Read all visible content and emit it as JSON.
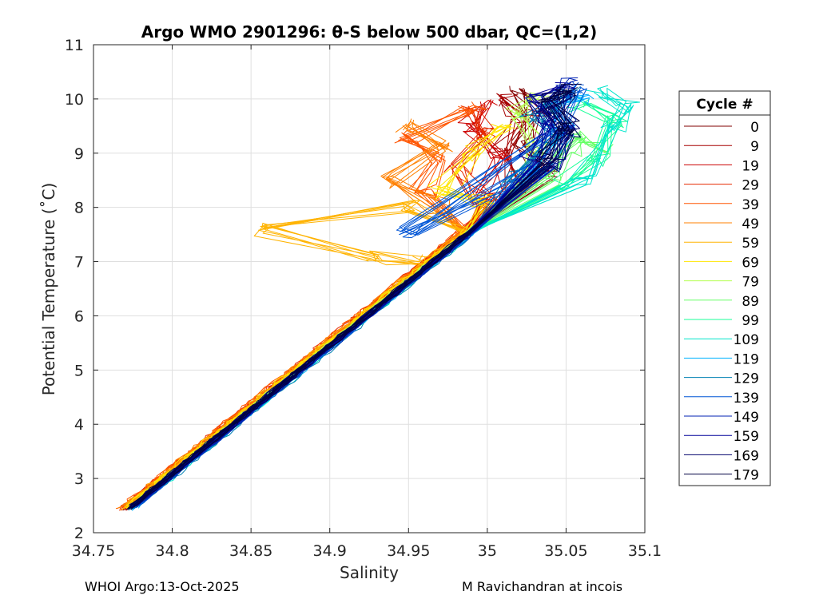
{
  "chart_data": {
    "type": "line",
    "title": "Argo WMO 2901296: θ-S below 500 dbar,  QC=(1,2)",
    "xlabel": "Salinity",
    "ylabel": "Potential Temperature (˚C)",
    "xlim": [
      34.75,
      35.1
    ],
    "ylim": [
      2,
      11
    ],
    "xticks": [
      34.75,
      34.8,
      34.85,
      34.9,
      34.95,
      35,
      35.05,
      35.1
    ],
    "xtick_labels": [
      "34.75",
      "34.8",
      "34.85",
      "34.9",
      "34.95",
      "35",
      "35.05",
      "35.1"
    ],
    "yticks": [
      2,
      3,
      4,
      5,
      6,
      7,
      8,
      9,
      10,
      11
    ],
    "ytick_labels": [
      "2",
      "3",
      "4",
      "5",
      "6",
      "7",
      "8",
      "9",
      "10",
      "11"
    ],
    "grid": true,
    "legend_title": "Cycle #",
    "legend_position": "right-outside",
    "series": [
      {
        "name": "0",
        "color": "#800000",
        "offset": 0.0,
        "upper": [
          [
            35.04,
            8.6
          ],
          [
            35.02,
            9.2
          ],
          [
            35.03,
            9.8
          ],
          [
            35.02,
            10.1
          ]
        ]
      },
      {
        "name": "9",
        "color": "#a50000",
        "offset": -0.001,
        "upper": [
          [
            35.02,
            8.4
          ],
          [
            35.01,
            9.0
          ],
          [
            35.02,
            9.6
          ],
          [
            35.01,
            10.0
          ]
        ]
      },
      {
        "name": "19",
        "color": "#cc0000",
        "offset": -0.003,
        "upper": [
          [
            35.0,
            8.2
          ],
          [
            35.01,
            8.9
          ],
          [
            34.99,
            9.5
          ],
          [
            35.0,
            9.9
          ]
        ]
      },
      {
        "name": "29",
        "color": "#e62a00",
        "offset": -0.004,
        "upper": [
          [
            35.0,
            8.1
          ],
          [
            34.98,
            8.7
          ],
          [
            35.0,
            9.4
          ],
          [
            34.99,
            9.8
          ]
        ]
      },
      {
        "name": "39",
        "color": "#ff5500",
        "offset": -0.005,
        "upper": [
          [
            34.96,
            8.3
          ],
          [
            34.97,
            8.9
          ],
          [
            34.95,
            9.3
          ],
          [
            34.99,
            9.8
          ]
        ]
      },
      {
        "name": "49",
        "color": "#ff8000",
        "offset": -0.004,
        "upper": [
          [
            34.97,
            8.0
          ],
          [
            34.94,
            8.5
          ],
          [
            34.97,
            9.1
          ],
          [
            34.95,
            9.5
          ]
        ]
      },
      {
        "name": "59",
        "color": "#ffb300",
        "offset": -0.003,
        "upper": [
          [
            34.95,
            8.0
          ],
          [
            34.86,
            7.58
          ],
          [
            34.93,
            7.05
          ],
          [
            34.96,
            7.0
          ]
        ]
      },
      {
        "name": "69",
        "color": "#ffe600",
        "offset": -0.002,
        "upper": [
          [
            35.0,
            8.1
          ],
          [
            34.97,
            8.3
          ],
          [
            34.99,
            9.0
          ],
          [
            35.01,
            9.5
          ]
        ]
      },
      {
        "name": "79",
        "color": "#b3ff4d",
        "offset": -0.001,
        "upper": [
          [
            35.02,
            8.4
          ],
          [
            35.03,
            9.1
          ],
          [
            35.02,
            9.7
          ],
          [
            35.03,
            10.0
          ]
        ]
      },
      {
        "name": "89",
        "color": "#66ff66",
        "offset": 0.0,
        "upper": [
          [
            35.04,
            8.5
          ],
          [
            35.05,
            9.0
          ],
          [
            35.06,
            9.3
          ],
          [
            35.07,
            9.1
          ]
        ]
      },
      {
        "name": "99",
        "color": "#1aff99",
        "offset": 0.001,
        "upper": [
          [
            35.05,
            8.4
          ],
          [
            35.07,
            8.9
          ],
          [
            35.08,
            9.6
          ],
          [
            35.06,
            9.9
          ]
        ]
      },
      {
        "name": "109",
        "color": "#00e6cc",
        "offset": 0.002,
        "upper": [
          [
            35.06,
            8.5
          ],
          [
            35.08,
            9.5
          ],
          [
            35.09,
            9.85
          ],
          [
            35.07,
            10.1
          ]
        ]
      },
      {
        "name": "119",
        "color": "#00b3ff",
        "offset": 0.002,
        "upper": [
          [
            35.03,
            8.7
          ],
          [
            35.05,
            9.4
          ],
          [
            35.04,
            9.9
          ],
          [
            35.06,
            10.0
          ]
        ]
      },
      {
        "name": "129",
        "color": "#0080b3",
        "offset": 0.003,
        "upper": [
          [
            35.02,
            8.6
          ],
          [
            35.04,
            9.3
          ],
          [
            35.03,
            9.7
          ],
          [
            35.05,
            10.1
          ]
        ]
      },
      {
        "name": "139",
        "color": "#0055d6",
        "offset": 0.002,
        "upper": [
          [
            35.03,
            8.7
          ],
          [
            34.95,
            7.55
          ],
          [
            35.04,
            9.4
          ],
          [
            35.06,
            10.2
          ]
        ]
      },
      {
        "name": "149",
        "color": "#0022b3",
        "offset": 0.001,
        "upper": [
          [
            35.04,
            8.8
          ],
          [
            35.05,
            9.5
          ],
          [
            35.04,
            9.9
          ],
          [
            35.05,
            10.3
          ]
        ]
      },
      {
        "name": "159",
        "color": "#000099",
        "offset": 0.0,
        "upper": [
          [
            35.03,
            8.9
          ],
          [
            35.04,
            9.6
          ],
          [
            35.03,
            10.0
          ],
          [
            35.05,
            10.2
          ]
        ]
      },
      {
        "name": "169",
        "color": "#00006b",
        "offset": 0.0,
        "upper": [
          [
            35.04,
            8.8
          ],
          [
            35.05,
            9.4
          ],
          [
            35.04,
            9.8
          ],
          [
            35.05,
            10.1
          ]
        ]
      },
      {
        "name": "179",
        "color": "#000040",
        "offset": 0.0,
        "upper": [
          [
            35.04,
            8.9
          ],
          [
            35.05,
            9.5
          ],
          [
            35.04,
            10.0
          ],
          [
            35.05,
            10.2
          ]
        ]
      }
    ]
  },
  "footer": {
    "left": "WHOI Argo:13-Oct-2025",
    "right": "M Ravichandran at incois"
  }
}
